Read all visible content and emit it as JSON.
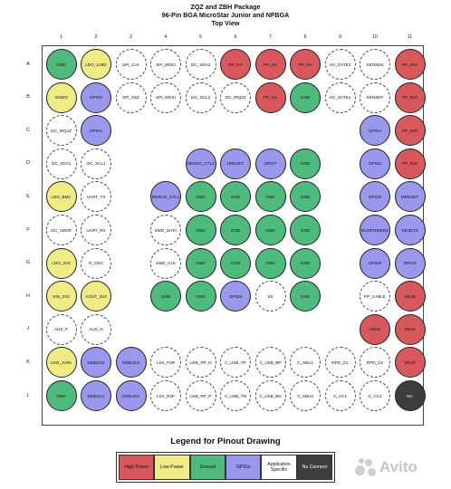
{
  "header": {
    "title_line1": "ZQZ and ZBH Package",
    "title_line2": "96-Pin BGA MicroStar Junior and NFBGA",
    "title_line3": "Top View"
  },
  "columns": [
    "1",
    "2",
    "3",
    "4",
    "5",
    "6",
    "7",
    "8",
    "9",
    "10",
    "11"
  ],
  "rows": [
    {
      "label": "A",
      "cells": [
        [
          "GND",
          "gd"
        ],
        [
          "LDO_1V8D",
          "lp"
        ],
        [
          "SPI_CLK",
          "ts"
        ],
        [
          "SPI_MISO",
          "ts"
        ],
        [
          "I2C_SDA2",
          "ts"
        ],
        [
          "PP_HV",
          "hp"
        ],
        [
          "PP_HV",
          "hp"
        ],
        [
          "PP_HV",
          "hp"
        ],
        [
          "HV_GATE2",
          "ts"
        ],
        [
          "SENSEN",
          "ts"
        ],
        [
          "PP_5V0",
          "hp"
        ]
      ]
    },
    {
      "label": "B",
      "cells": [
        [
          "VDDIO",
          "lp"
        ],
        [
          "GPIO0",
          "gp"
        ],
        [
          "SPI_SSZ",
          "ts"
        ],
        [
          "SPI_MOSI",
          "ts"
        ],
        [
          "I2C_SCL2",
          "ts"
        ],
        [
          "I2C_IRQ2Z",
          "ts"
        ],
        [
          "PP_HV",
          "hp"
        ],
        [
          "GND",
          "gd"
        ],
        [
          "HV_GATE1",
          "ts"
        ],
        [
          "SENSEP",
          "ts"
        ],
        [
          "PP_5V0",
          "hp"
        ]
      ]
    },
    {
      "label": "C",
      "cells": [
        [
          "I2C_IRQ1Z",
          "ts"
        ],
        [
          "GPIO1",
          "gp"
        ],
        null,
        null,
        null,
        null,
        null,
        null,
        null,
        [
          "GPIO4",
          "gp"
        ],
        [
          "PP_5V0",
          "hp"
        ]
      ]
    },
    {
      "label": "D",
      "cells": [
        [
          "I2C_SDA1",
          "ts"
        ],
        [
          "I2C_SCL1",
          "ts"
        ],
        null,
        null,
        [
          "DEBUG_CTL2",
          "gp"
        ],
        [
          "HRESET",
          "gp"
        ],
        [
          "GPIO7",
          "gp"
        ],
        [
          "GND",
          "gd"
        ],
        null,
        [
          "GPIO2",
          "gp"
        ],
        [
          "PP_5V0",
          "hp"
        ]
      ]
    },
    {
      "label": "E",
      "cells": [
        [
          "LDO_BMC",
          "lp"
        ],
        [
          "UART_TX",
          "ts"
        ],
        null,
        [
          "DEBUG_CTL1",
          "gp"
        ],
        [
          "GND",
          "gd"
        ],
        [
          "GND",
          "gd"
        ],
        [
          "GND",
          "gd"
        ],
        [
          "GND",
          "gd"
        ],
        null,
        [
          "GPIO5",
          "gp"
        ],
        [
          "MRESET",
          "gp"
        ]
      ]
    },
    {
      "label": "F",
      "cells": [
        [
          "I2C_ADDR",
          "ts"
        ],
        [
          "UART_RX",
          "ts"
        ],
        null,
        [
          "SWD_DATA",
          "ts"
        ],
        [
          "GND",
          "gd"
        ],
        [
          "GND",
          "gd"
        ],
        [
          "GND",
          "gd"
        ],
        [
          "GND",
          "gd"
        ],
        null,
        [
          "BUSPOWERZ",
          "gp"
        ],
        [
          "RESETZ",
          "gp"
        ]
      ]
    },
    {
      "label": "G",
      "cells": [
        [
          "LDO_3V3",
          "lp"
        ],
        [
          "R_OSC",
          "ts"
        ],
        null,
        [
          "SWD_CLK",
          "ts"
        ],
        [
          "GND",
          "gd"
        ],
        [
          "GND",
          "gd"
        ],
        [
          "GND",
          "gd"
        ],
        [
          "GND",
          "gd"
        ],
        null,
        [
          "GPIO6",
          "gp"
        ],
        [
          "GPIO3",
          "gp"
        ]
      ]
    },
    {
      "label": "H",
      "cells": [
        [
          "VIN_3V3",
          "lp"
        ],
        [
          "VOUT_3V3",
          "lp"
        ],
        null,
        [
          "GND",
          "gd"
        ],
        [
          "GND",
          "gd"
        ],
        [
          "GPIO8",
          "gp"
        ],
        [
          "SS",
          "ts"
        ],
        [
          "GND",
          "gd"
        ],
        null,
        [
          "PP_CABLE",
          "ts"
        ],
        [
          "VBUS",
          "hp"
        ]
      ]
    },
    {
      "label": "J",
      "cells": [
        [
          "AUX_P",
          "ts"
        ],
        [
          "AUX_N",
          "ts"
        ],
        null,
        null,
        null,
        null,
        null,
        null,
        null,
        [
          "VBUS",
          "hp"
        ],
        [
          "VBUS",
          "hp"
        ]
      ]
    },
    {
      "label": "K",
      "cells": [
        [
          "LDO_1V8A",
          "lp"
        ],
        [
          "DEBUG2",
          "gp"
        ],
        [
          "DEBUG4",
          "gp"
        ],
        [
          "LSX_P2R",
          "ts"
        ],
        [
          "USB_RP_N",
          "ts"
        ],
        [
          "C_USB_TP",
          "ts"
        ],
        [
          "C_USB_BP",
          "ts"
        ],
        [
          "C_SBU1",
          "ts"
        ],
        [
          "RPD_G1",
          "ts"
        ],
        [
          "RPD_G2",
          "ts"
        ],
        [
          "VBUS",
          "hp"
        ]
      ]
    },
    {
      "label": "L",
      "cells": [
        [
          "GND",
          "gd"
        ],
        [
          "DEBUG1",
          "gp"
        ],
        [
          "DEBUG3",
          "gp"
        ],
        [
          "LSX_R2P",
          "ts"
        ],
        [
          "USB_RP_P",
          "ts"
        ],
        [
          "C_USB_TN",
          "ts"
        ],
        [
          "C_USB_BN",
          "ts"
        ],
        [
          "C_SBU2",
          "ts"
        ],
        [
          "C_CC1",
          "ts"
        ],
        [
          "C_CC2",
          "ts"
        ],
        [
          "NC",
          "nc"
        ]
      ]
    }
  ],
  "legend": {
    "title": "Legend for Pinout Drawing",
    "items": [
      {
        "label": "High Power",
        "cls": "hp"
      },
      {
        "label": "Low Power",
        "cls": "lp"
      },
      {
        "label": "Ground",
        "cls": "gd"
      },
      {
        "label": "GPIOs",
        "cls": "gp"
      },
      {
        "label": "Application Specific",
        "cls": "ts"
      },
      {
        "label": "No Connect",
        "cls": "nc"
      }
    ]
  },
  "colors": {
    "high_power": "#d9585b",
    "low_power": "#eeec83",
    "ground": "#4cbb7c",
    "gpio": "#9a98ec",
    "application_specific": "#ffffff",
    "no_connect": "#3d3d3d"
  },
  "watermark": {
    "text": "Avito"
  }
}
